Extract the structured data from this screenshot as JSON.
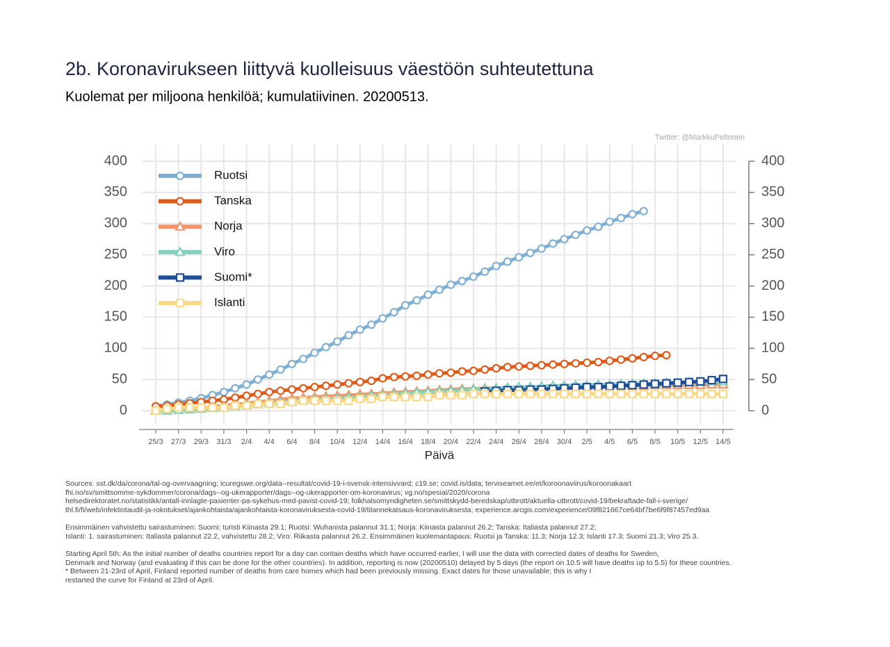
{
  "chart_data": {
    "type": "line",
    "title": "2b. Koronavirukseen liittyvä kuolleisuus väestöön suhteutettuna",
    "subtitle": "Kuolemat per miljoona henkilöä; kumulatiivinen. 20200513.",
    "credit": "Twitter: @MarkkuPeltonen",
    "xlabel": "Päivä",
    "categories": [
      "25/3",
      null,
      "27/3",
      null,
      "29/3",
      null,
      "31/3",
      null,
      "2/4",
      null,
      "4/4",
      null,
      "6/4",
      null,
      "8/4",
      null,
      "10/4",
      null,
      "12/4",
      null,
      "14/4",
      null,
      "16/4",
      null,
      "18/4",
      null,
      "20/4",
      null,
      "22/4",
      null,
      "24/4",
      null,
      "26/4",
      null,
      "28/4",
      null,
      "30/4",
      null,
      "2/5",
      null,
      "4/5",
      null,
      "6/5",
      null,
      "8/5",
      null,
      "10/5",
      null,
      "12/5",
      null,
      "14/5"
    ],
    "ylim": [
      -20,
      400
    ],
    "yticks": [
      0,
      50,
      100,
      150,
      200,
      250,
      300,
      350,
      400
    ],
    "y2lim": [
      -20,
      400
    ],
    "y2ticks": [
      0,
      50,
      100,
      150,
      200,
      250,
      300,
      350,
      400
    ],
    "grid": true,
    "legend": "top-left",
    "series": [
      {
        "name": "Ruotsi",
        "color": "#7fb0d4",
        "marker": "circle",
        "values": [
          7,
          10,
          13,
          16,
          20,
          25,
          30,
          36,
          42,
          50,
          58,
          66,
          75,
          83,
          93,
          102,
          111,
          121,
          130,
          138,
          148,
          158,
          169,
          177,
          186,
          194,
          202,
          208,
          215,
          223,
          232,
          239,
          246,
          253,
          260,
          268,
          275,
          282,
          289,
          295,
          303,
          309,
          315,
          320,
          null,
          null,
          null,
          null,
          null,
          null,
          null
        ]
      },
      {
        "name": "Tanska",
        "color": "#e05a1a",
        "marker": "circle",
        "values": [
          7,
          8,
          10,
          12,
          14,
          16,
          18,
          21,
          24,
          27,
          30,
          32,
          34,
          36,
          38,
          40,
          42,
          44,
          46,
          48,
          52,
          54,
          55,
          56,
          58,
          60,
          61,
          63,
          64,
          66,
          68,
          70,
          71,
          72,
          73,
          74,
          75,
          76,
          77,
          78,
          80,
          82,
          84,
          86,
          88,
          89,
          null,
          null,
          null,
          null,
          null
        ]
      },
      {
        "name": "Norja",
        "color": "#f0956a",
        "marker": "triangle",
        "values": [
          0,
          1,
          2,
          3,
          4,
          6,
          8,
          10,
          12,
          14,
          16,
          18,
          20,
          21,
          22,
          23,
          24,
          25,
          26,
          27,
          28,
          29,
          30,
          31,
          32,
          33,
          34,
          35,
          35,
          36,
          36,
          37,
          37,
          37,
          38,
          38,
          38,
          39,
          39,
          39,
          40,
          40,
          40,
          40,
          41,
          41,
          41,
          41,
          41,
          42,
          42
        ]
      },
      {
        "name": "Viro",
        "color": "#85d0bb",
        "marker": "triangle",
        "values": [
          0,
          0,
          1,
          2,
          3,
          4,
          5,
          7,
          9,
          10,
          12,
          14,
          15,
          17,
          18,
          19,
          20,
          21,
          22,
          24,
          25,
          26,
          28,
          29,
          30,
          31,
          32,
          33,
          34,
          35,
          36,
          37,
          38,
          38,
          39,
          40,
          40,
          41,
          41,
          42,
          42,
          43,
          43,
          44,
          44,
          45,
          45,
          46,
          46,
          47,
          47
        ]
      },
      {
        "name": "Suomi*",
        "color": "#1f4f9a",
        "marker": "square",
        "values": [
          null,
          null,
          null,
          null,
          null,
          null,
          null,
          null,
          null,
          null,
          null,
          null,
          null,
          null,
          null,
          null,
          null,
          null,
          null,
          null,
          null,
          null,
          null,
          null,
          null,
          null,
          null,
          null,
          null,
          31,
          32,
          33,
          33,
          34,
          34,
          35,
          36,
          37,
          38,
          38,
          39,
          40,
          41,
          42,
          43,
          44,
          45,
          46,
          47,
          49,
          51
        ]
      },
      {
        "name": "Islanti",
        "color": "#fbd886",
        "marker": "square",
        "values": [
          0,
          3,
          5,
          5,
          5,
          5,
          5,
          8,
          8,
          11,
          11,
          11,
          14,
          16,
          16,
          16,
          16,
          16,
          19,
          19,
          22,
          22,
          22,
          22,
          22,
          25,
          25,
          25,
          27,
          27,
          27,
          27,
          27,
          27,
          27,
          27,
          27,
          27,
          27,
          27,
          27,
          27,
          27,
          27,
          27,
          27,
          27,
          27,
          27,
          27,
          27
        ]
      }
    ],
    "sources": [
      "Sources: sst.dk/da/corona/tal-og-overvaagning; icuregswe.org/data--resultat/covid-19-i-svensk-intensivvard; c19.se; covid.is/data;  terviseamet.ee/et/koroonaviirus/koroonakaart",
      "fhi.no/sv/smittsomme-sykdommer/corona/dags--og-ukerapporter/dags--og-ukerapporter-om-koronavirus; vg.no/spesial/2020/corona",
      "helsedirektoratet.no/statistikk/antall-innlagte-pasienter-pa-sykehus-med-pavist-covid-19; folkhalsomyndigheten.se/smittskydd-beredskap/utbrott/aktuella-utbrott/covid-19/bekraftade-fall-i-sverige/",
      "thl.fi/fi/web/infektiotaudit-ja-rokotukset/ajankohtaista/ajankohtaista-koronaviruksesta-covid-19/tilannekatsaus-koronaviruksesta; experience.arcgis.com/experience/09f821667ce64bf7be6f9f87457ed9aa"
    ],
    "first_cases": [
      "Ensimmäinen vahvistettu sairastuminen: Suomi: turisti Kiinasta 29.1; Ruotsi: Wuhanista palannut 31.1; Norja: Kiinasta palannut 26.2; Tanska: Italiasta palannut 27.2;",
      "Islanti: 1. sairastuminen: Italiasta palannut 22.2, vahvistettu 28.2; Viro: Riikasta palannut 26.2. Ensimmäinen kuolemantapaus: Ruotsi ja Tanska: 11.3; Norja 12.3; Islanti 17.3; Suomi 21.3; Viro 25.3."
    ],
    "method_note": [
      "Starting April 5th: As the initial number of deaths countries report for a day can contain deaths which have occurred earlier, I will use the data with corrected dates of deaths for Sweden,",
      "Denmark and Norway (and evaluating if this can be done for the other countries). In addition, reporting is now (20200510) delayed by 5 days (the report on 10.5 will have deaths up to 5.5) for these countries.",
      "* Between 21-23rd of April, Finland reported number of deaths from care homes which had been previously missing. Exact dates for those unavailable; this is why I",
      "restarted the curve for Finland at 23rd of April."
    ]
  }
}
